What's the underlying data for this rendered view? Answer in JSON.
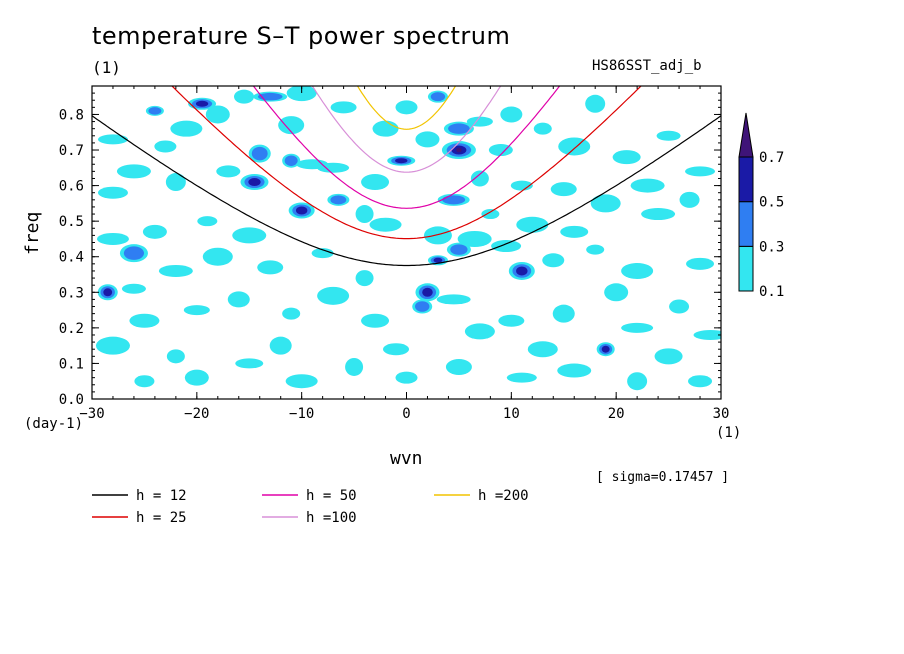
{
  "title": "temperature S–T power spectrum",
  "plot_unit": "(1)",
  "dataset": "HS86SST_adj_b",
  "sigma_text": "[ sigma=0.17457 ]",
  "colors": {
    "white": "#ffffff",
    "cyan": "#33e6f0",
    "blue": "#2f7ef2",
    "dark_blue": "#1a1aa6",
    "purple": "#3f1478"
  },
  "chart_data": {
    "type": "heatmap",
    "title": "temperature S–T power spectrum",
    "xlabel": "wvn",
    "x_unit": "(1)",
    "ylabel": "freq",
    "y_unit": "(day-1)",
    "xlim": [
      -30,
      30
    ],
    "ylim": [
      0,
      0.88
    ],
    "xticks": [
      -30,
      -20,
      -10,
      0,
      10,
      20,
      30
    ],
    "xtick_labels": [
      "-30",
      "-20",
      "-10",
      "0",
      "10",
      "20",
      "30"
    ],
    "yticks": [
      0.0,
      0.1,
      0.2,
      0.3,
      0.4,
      0.5,
      0.6,
      0.7,
      0.8
    ],
    "ytick_labels": [
      "0.0",
      "0.1",
      "0.2",
      "0.3",
      "0.4",
      "0.5",
      "0.6",
      "0.7",
      "0.8"
    ],
    "colorbar": {
      "levels": [
        "0.1",
        "0.3",
        "0.5",
        "0.7"
      ],
      "colors": [
        "#33e6f0",
        "#2f7ef2",
        "#1a1aa6",
        "#3f1478"
      ],
      "extend": "max"
    },
    "contour_fill_patches": [
      {
        "x": -24,
        "y": 0.81,
        "level": 1
      },
      {
        "x": -21,
        "y": 0.76,
        "level": 0
      },
      {
        "x": -19.5,
        "y": 0.83,
        "level": 2
      },
      {
        "x": -18,
        "y": 0.8,
        "level": 0
      },
      {
        "x": -15.5,
        "y": 0.85,
        "level": 0
      },
      {
        "x": -13,
        "y": 0.85,
        "level": 1
      },
      {
        "x": -10,
        "y": 0.86,
        "level": 0
      },
      {
        "x": -6,
        "y": 0.82,
        "level": 0
      },
      {
        "x": -14,
        "y": 0.69,
        "level": 1
      },
      {
        "x": -11,
        "y": 0.67,
        "level": 1
      },
      {
        "x": -9,
        "y": 0.66,
        "level": 0
      },
      {
        "x": -14.5,
        "y": 0.61,
        "level": 2
      },
      {
        "x": -17,
        "y": 0.64,
        "level": 0
      },
      {
        "x": -22,
        "y": 0.61,
        "level": 0
      },
      {
        "x": -26,
        "y": 0.64,
        "level": 0
      },
      {
        "x": -28,
        "y": 0.73,
        "level": 0
      },
      {
        "x": -10,
        "y": 0.53,
        "level": 2
      },
      {
        "x": -6.5,
        "y": 0.56,
        "level": 1
      },
      {
        "x": -4,
        "y": 0.52,
        "level": 0
      },
      {
        "x": -2,
        "y": 0.49,
        "level": 0
      },
      {
        "x": -0.5,
        "y": 0.67,
        "level": 2
      },
      {
        "x": 2,
        "y": 0.73,
        "level": 0
      },
      {
        "x": 3,
        "y": 0.85,
        "level": 1
      },
      {
        "x": 5,
        "y": 0.7,
        "level": 3
      },
      {
        "x": 5,
        "y": 0.76,
        "level": 1
      },
      {
        "x": 7,
        "y": 0.78,
        "level": 0
      },
      {
        "x": 10,
        "y": 0.8,
        "level": 0
      },
      {
        "x": 13,
        "y": 0.76,
        "level": 0
      },
      {
        "x": 16,
        "y": 0.71,
        "level": 0
      },
      {
        "x": 21,
        "y": 0.68,
        "level": 0
      },
      {
        "x": 25,
        "y": 0.74,
        "level": 0
      },
      {
        "x": 27,
        "y": 0.56,
        "level": 0
      },
      {
        "x": 24,
        "y": 0.52,
        "level": 0
      },
      {
        "x": 19,
        "y": 0.55,
        "level": 0
      },
      {
        "x": 15,
        "y": 0.59,
        "level": 0
      },
      {
        "x": 11,
        "y": 0.6,
        "level": 0
      },
      {
        "x": 7,
        "y": 0.62,
        "level": 0
      },
      {
        "x": 4.5,
        "y": 0.56,
        "level": 1
      },
      {
        "x": 3,
        "y": 0.46,
        "level": 0
      },
      {
        "x": 5,
        "y": 0.42,
        "level": 1
      },
      {
        "x": 3,
        "y": 0.39,
        "level": 2
      },
      {
        "x": 6.5,
        "y": 0.45,
        "level": 0
      },
      {
        "x": 9.5,
        "y": 0.43,
        "level": 0
      },
      {
        "x": 11,
        "y": 0.36,
        "level": 2
      },
      {
        "x": 14,
        "y": 0.39,
        "level": 0
      },
      {
        "x": 18,
        "y": 0.42,
        "level": 0
      },
      {
        "x": 22,
        "y": 0.36,
        "level": 0
      },
      {
        "x": 28,
        "y": 0.38,
        "level": 0
      },
      {
        "x": 2,
        "y": 0.3,
        "level": 2
      },
      {
        "x": 1.5,
        "y": 0.26,
        "level": 1
      },
      {
        "x": 4.5,
        "y": 0.28,
        "level": 0
      },
      {
        "x": 7,
        "y": 0.19,
        "level": 0
      },
      {
        "x": 10,
        "y": 0.22,
        "level": 0
      },
      {
        "x": 15,
        "y": 0.24,
        "level": 0
      },
      {
        "x": 19,
        "y": 0.14,
        "level": 2
      },
      {
        "x": 22,
        "y": 0.2,
        "level": 0
      },
      {
        "x": 25,
        "y": 0.12,
        "level": 0
      },
      {
        "x": 28,
        "y": 0.05,
        "level": 0
      },
      {
        "x": 22,
        "y": 0.05,
        "level": 0
      },
      {
        "x": 16,
        "y": 0.08,
        "level": 0
      },
      {
        "x": 11,
        "y": 0.06,
        "level": 0
      },
      {
        "x": 5,
        "y": 0.09,
        "level": 0
      },
      {
        "x": 0,
        "y": 0.06,
        "level": 0
      },
      {
        "x": -5,
        "y": 0.09,
        "level": 0
      },
      {
        "x": -10,
        "y": 0.05,
        "level": 0
      },
      {
        "x": -15,
        "y": 0.1,
        "level": 0
      },
      {
        "x": -20,
        "y": 0.06,
        "level": 0
      },
      {
        "x": -25,
        "y": 0.05,
        "level": 0
      },
      {
        "x": -28,
        "y": 0.15,
        "level": 0
      },
      {
        "x": -25,
        "y": 0.22,
        "level": 0
      },
      {
        "x": -20,
        "y": 0.25,
        "level": 0
      },
      {
        "x": -16,
        "y": 0.28,
        "level": 0
      },
      {
        "x": -11,
        "y": 0.24,
        "level": 0
      },
      {
        "x": -7,
        "y": 0.29,
        "level": 0
      },
      {
        "x": -3,
        "y": 0.22,
        "level": 0
      },
      {
        "x": -26,
        "y": 0.31,
        "level": 0
      },
      {
        "x": -28.5,
        "y": 0.3,
        "level": 2
      },
      {
        "x": -22,
        "y": 0.36,
        "level": 0
      },
      {
        "x": -18,
        "y": 0.4,
        "level": 0
      },
      {
        "x": -13,
        "y": 0.37,
        "level": 0
      },
      {
        "x": -8,
        "y": 0.41,
        "level": 0
      },
      {
        "x": -4,
        "y": 0.34,
        "level": 0
      },
      {
        "x": -28,
        "y": 0.45,
        "level": 0
      },
      {
        "x": -26,
        "y": 0.41,
        "level": 1
      },
      {
        "x": -24,
        "y": 0.47,
        "level": 0
      },
      {
        "x": -19,
        "y": 0.5,
        "level": 0
      },
      {
        "x": -15,
        "y": 0.46,
        "level": 0
      },
      {
        "x": -28,
        "y": 0.58,
        "level": 0
      },
      {
        "x": -11,
        "y": 0.77,
        "level": 0
      },
      {
        "x": 0,
        "y": 0.82,
        "level": 0
      },
      {
        "x": 8,
        "y": 0.52,
        "level": 0
      },
      {
        "x": 12,
        "y": 0.49,
        "level": 0
      },
      {
        "x": 16,
        "y": 0.47,
        "level": 0
      },
      {
        "x": 20,
        "y": 0.3,
        "level": 0
      },
      {
        "x": 26,
        "y": 0.26,
        "level": 0
      },
      {
        "x": 29,
        "y": 0.18,
        "level": 0
      },
      {
        "x": 13,
        "y": 0.14,
        "level": 0
      },
      {
        "x": -1,
        "y": 0.14,
        "level": 0
      },
      {
        "x": -12,
        "y": 0.15,
        "level": 0
      },
      {
        "x": -22,
        "y": 0.12,
        "level": 0
      },
      {
        "x": -7,
        "y": 0.65,
        "level": 0
      },
      {
        "x": -3,
        "y": 0.61,
        "level": 0
      },
      {
        "x": 9,
        "y": 0.7,
        "level": 0
      },
      {
        "x": 18,
        "y": 0.83,
        "level": 0
      },
      {
        "x": 23,
        "y": 0.6,
        "level": 0
      },
      {
        "x": 28,
        "y": 0.64,
        "level": 0
      },
      {
        "x": -2,
        "y": 0.76,
        "level": 0
      },
      {
        "x": -23,
        "y": 0.71,
        "level": 0
      }
    ],
    "dispersion_curves": [
      {
        "name": "h = 12",
        "color": "#000000",
        "h": 12
      },
      {
        "name": "h = 25",
        "color": "#dd0000",
        "h": 25
      },
      {
        "name": "h = 50",
        "color": "#e000a8",
        "h": 50
      },
      {
        "name": "h =100",
        "color": "#d890d8",
        "h": 100
      },
      {
        "name": "h =200",
        "color": "#f2c400",
        "h": 200
      }
    ],
    "legend_placement": "bottom-left",
    "grid": false
  }
}
